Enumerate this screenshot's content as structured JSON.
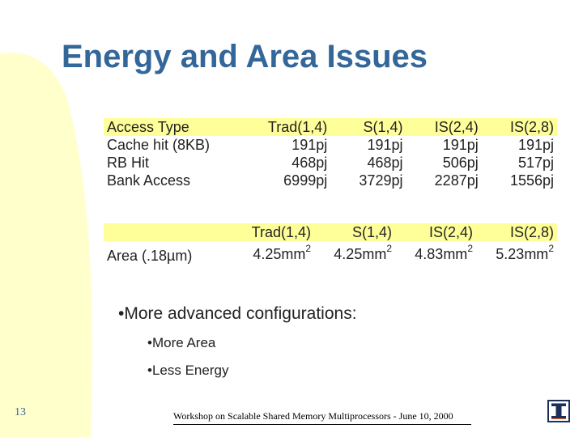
{
  "slide": {
    "title": "Energy and Area Issues",
    "slide_number": "13",
    "footer": "Workshop on Scalable Shared Memory Multiprocessors - June 10, 2000"
  },
  "energy_table": {
    "header": [
      "Access Type",
      "Trad(1,4)",
      "S(1,4)",
      "IS(2,4)",
      "IS(2,8)"
    ],
    "rows": [
      {
        "label": "Cache hit (8KB)",
        "values": [
          "191pj",
          "191pj",
          "191pj",
          "191pj"
        ]
      },
      {
        "label": "RB Hit",
        "values": [
          "468pj",
          "468pj",
          "506pj",
          "517pj"
        ]
      },
      {
        "label": "Bank Access",
        "values": [
          "6999pj",
          "3729pj",
          "2287pj",
          "1556pj"
        ]
      }
    ]
  },
  "area_table": {
    "header": [
      "Trad(1,4)",
      "S(1,4)",
      "IS(2,4)",
      "IS(2,8)"
    ],
    "label": "Area (.18µm)",
    "values": [
      "4.25mm",
      "4.25mm",
      "4.83mm",
      "5.23mm"
    ],
    "unit_exponent": "2"
  },
  "bullets": {
    "main": "•More advanced configurations:",
    "sub": [
      "•More Area",
      "•Less Energy"
    ]
  },
  "colors": {
    "title": "#336699",
    "header_highlight": "#ffff99",
    "background_curve": "#ffffcc"
  },
  "icons": {
    "logo": "university-of-illinois-logo"
  }
}
